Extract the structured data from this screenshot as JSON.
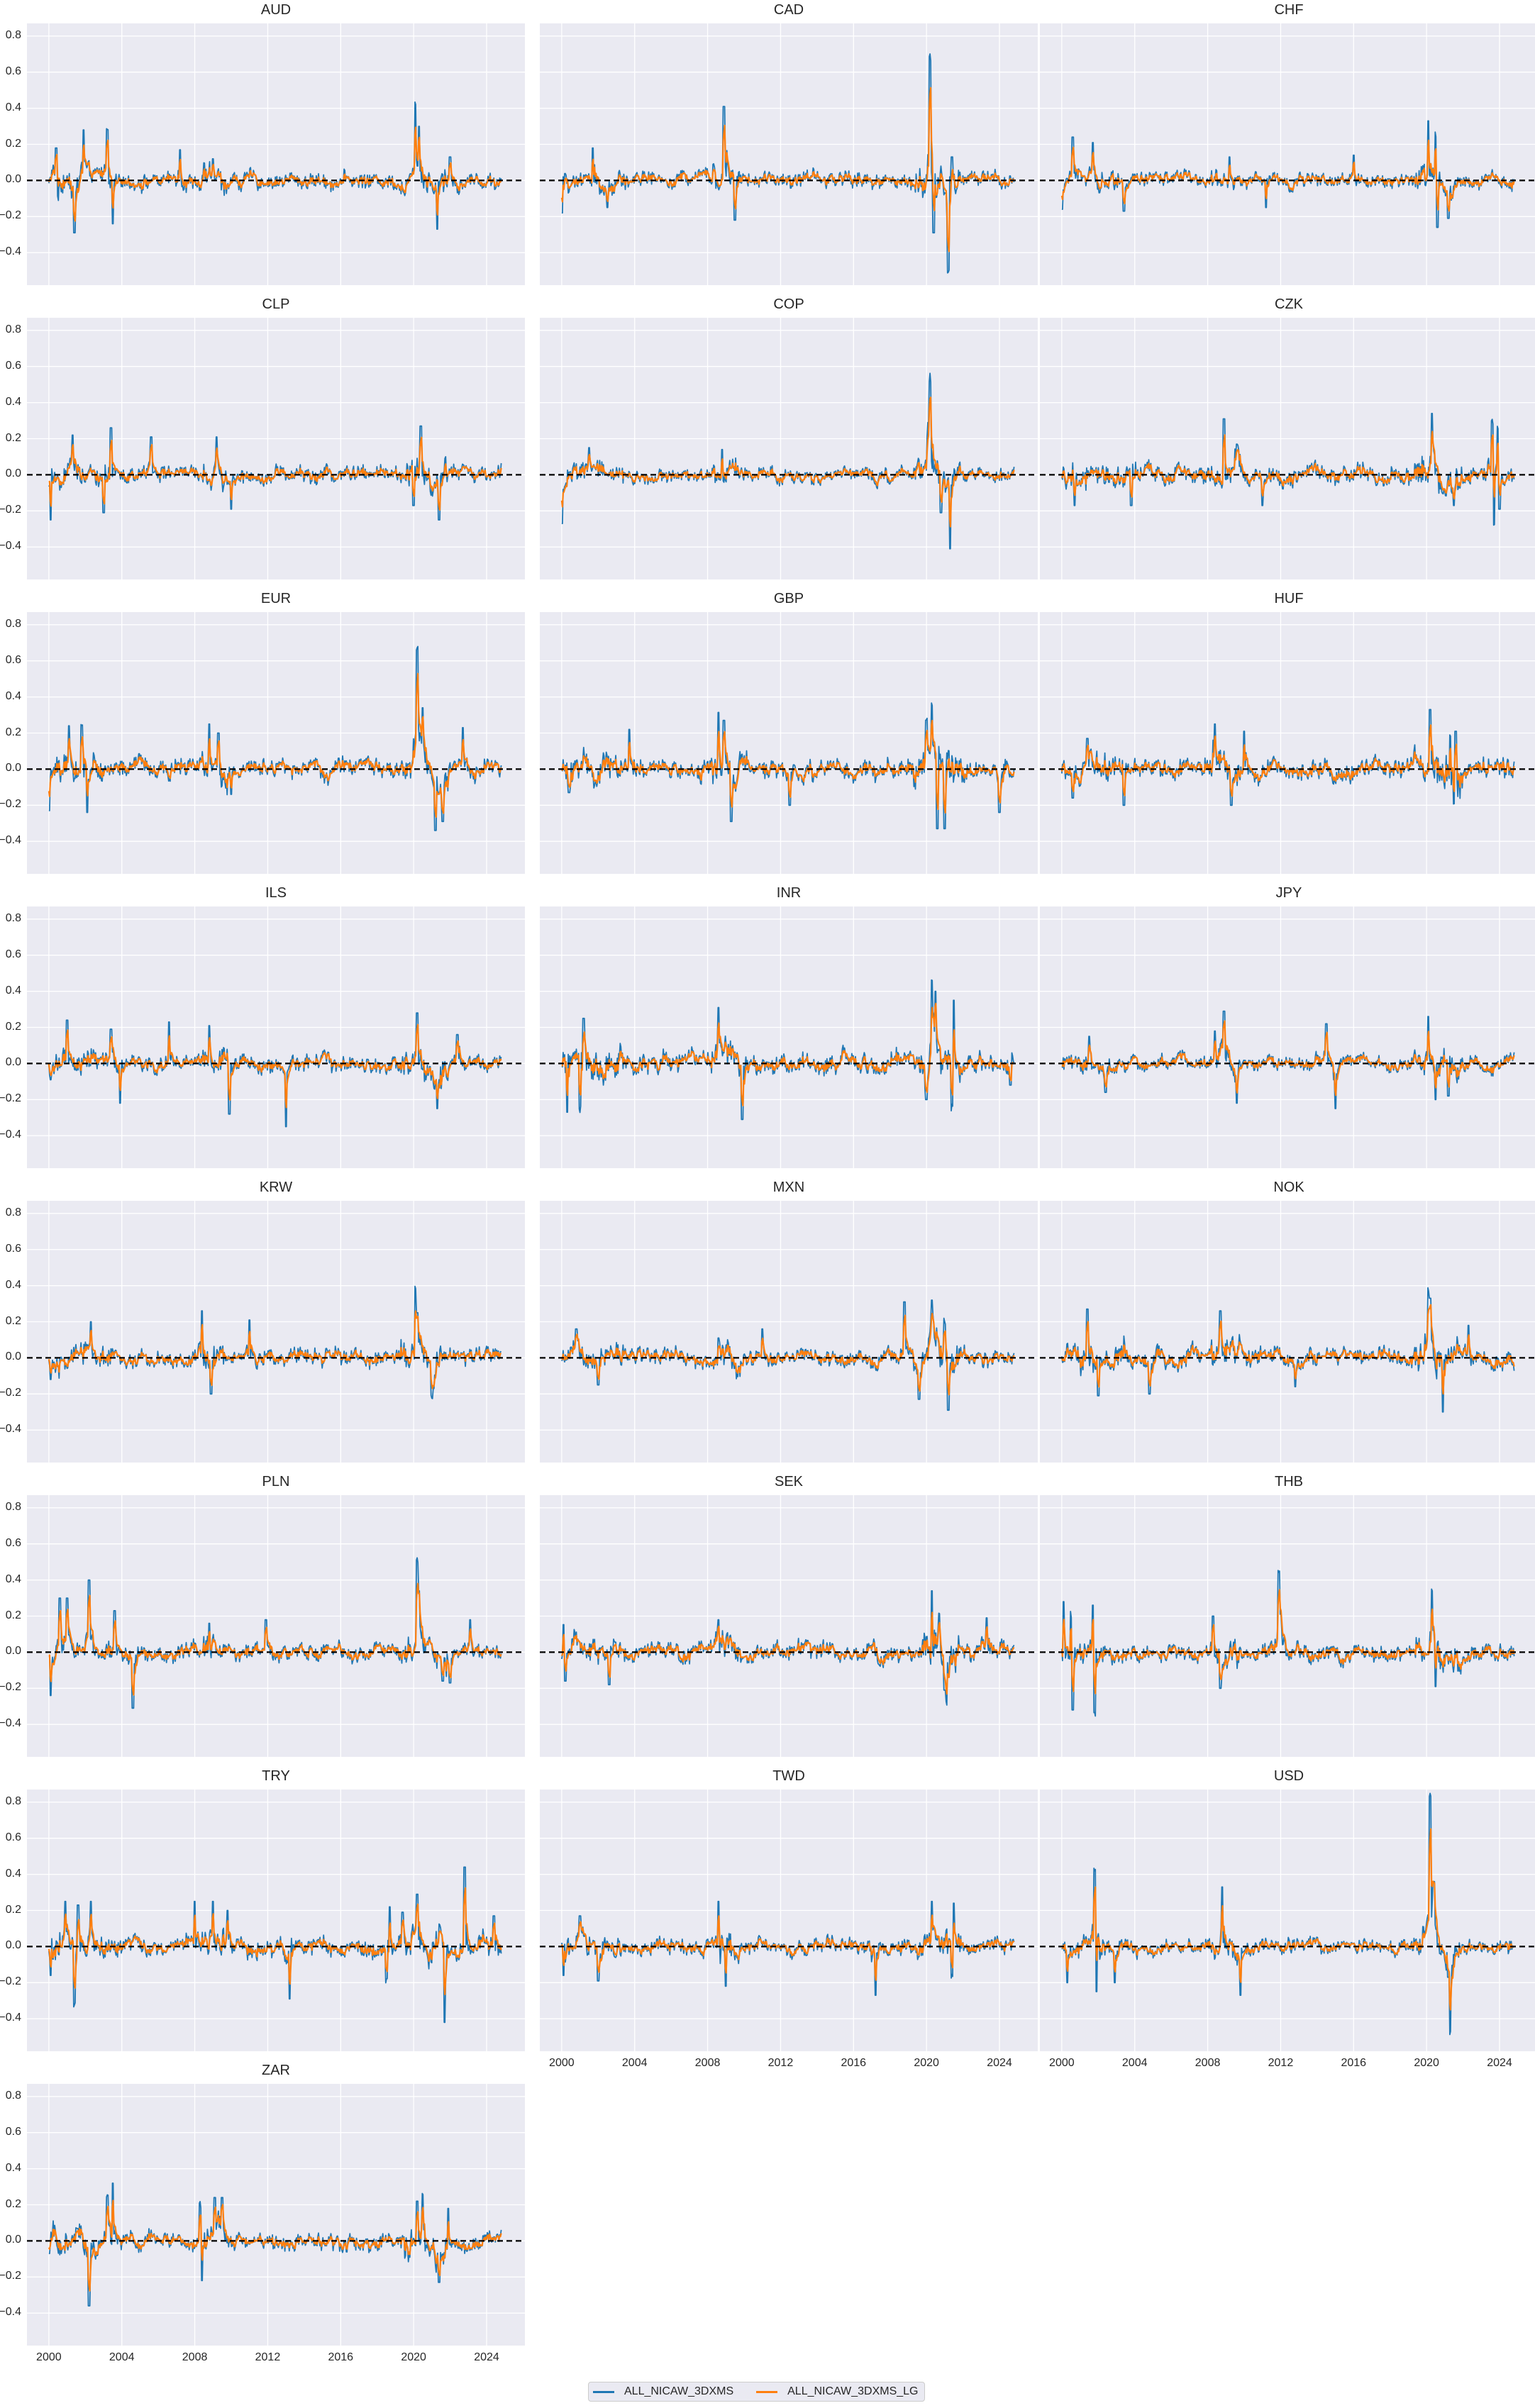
{
  "figure": {
    "legend": [
      {
        "label": "ALL_NICAW_3DXMS",
        "color": "#1f77b4"
      },
      {
        "label": "ALL_NICAW_3DXMS_LG",
        "color": "#ff7f0e"
      }
    ]
  },
  "chart_data": {
    "type": "line",
    "layout": "facet grid 3 columns x 8 rows, shared y axis, dashed zero line",
    "xlabel": "",
    "ylabel": "",
    "ylim": [
      -0.58,
      0.87
    ],
    "xlim": [
      1998.8,
      2026.1
    ],
    "yticks": [
      "0.8",
      "0.6",
      "0.4",
      "0.2",
      "0.0",
      "-0.2",
      "-0.4"
    ],
    "xticks": [
      "2000",
      "2004",
      "2008",
      "2012",
      "2016",
      "2020",
      "2024"
    ],
    "x_range_data": [
      2000.0,
      2024.8
    ],
    "grid": true,
    "zero_line": {
      "y": 0.0,
      "style": "dashed",
      "color": "#000000"
    },
    "series_names": [
      "ALL_NICAW_3DXMS",
      "ALL_NICAW_3DXMS_LG"
    ],
    "series_colors": [
      "#1f77b4",
      "#ff7f0e"
    ],
    "legend_position": "bottom center",
    "panels": [
      {
        "title": "AUD",
        "noise": 0.04,
        "events": [
          [
            2000.5,
            -0.13
          ],
          [
            2000.4,
            0.18
          ],
          [
            2001.4,
            -0.29
          ],
          [
            2001.9,
            0.28
          ],
          [
            2003.2,
            0.29
          ],
          [
            2003.5,
            -0.24
          ],
          [
            2007.2,
            0.17
          ],
          [
            2009.0,
            0.12
          ],
          [
            2020.1,
            0.41
          ],
          [
            2020.3,
            0.3
          ],
          [
            2021.3,
            -0.27
          ],
          [
            2022.0,
            0.13
          ]
        ]
      },
      {
        "title": "CAD",
        "noise": 0.04,
        "events": [
          [
            2000.0,
            -0.18
          ],
          [
            2001.7,
            0.18
          ],
          [
            2002.5,
            -0.15
          ],
          [
            2008.9,
            0.41
          ],
          [
            2009.5,
            -0.22
          ],
          [
            2020.2,
            0.71
          ],
          [
            2020.4,
            -0.29
          ],
          [
            2021.2,
            -0.52
          ],
          [
            2021.4,
            0.13
          ]
        ]
      },
      {
        "title": "CHF",
        "noise": 0.035,
        "events": [
          [
            2000.0,
            -0.16
          ],
          [
            2000.6,
            0.24
          ],
          [
            2001.7,
            0.21
          ],
          [
            2003.4,
            -0.17
          ],
          [
            2009.2,
            0.13
          ],
          [
            2011.2,
            -0.15
          ],
          [
            2016.0,
            0.14
          ],
          [
            2020.1,
            0.33
          ],
          [
            2020.5,
            0.31
          ],
          [
            2020.6,
            -0.26
          ],
          [
            2021.2,
            -0.21
          ]
        ]
      },
      {
        "title": "CLP",
        "noise": 0.04,
        "events": [
          [
            2000.1,
            -0.25
          ],
          [
            2001.3,
            0.22
          ],
          [
            2003.4,
            0.26
          ],
          [
            2003.0,
            -0.21
          ],
          [
            2005.6,
            0.21
          ],
          [
            2009.2,
            0.21
          ],
          [
            2010.0,
            -0.19
          ],
          [
            2020.0,
            0.22
          ],
          [
            2020.4,
            0.27
          ],
          [
            2020.0,
            -0.17
          ],
          [
            2021.4,
            -0.25
          ]
        ]
      },
      {
        "title": "COP",
        "noise": 0.035,
        "events": [
          [
            2000.0,
            -0.27
          ],
          [
            2001.5,
            0.15
          ],
          [
            2008.8,
            0.14
          ],
          [
            2020.2,
            0.5
          ],
          [
            2020.1,
            0.29
          ],
          [
            2021.3,
            -0.41
          ],
          [
            2020.8,
            -0.21
          ]
        ]
      },
      {
        "title": "CZK",
        "noise": 0.045,
        "events": [
          [
            2000.7,
            -0.17
          ],
          [
            2003.8,
            -0.17
          ],
          [
            2008.9,
            0.31
          ],
          [
            2009.6,
            0.17
          ],
          [
            2011.0,
            -0.17
          ],
          [
            2020.3,
            0.34
          ],
          [
            2021.5,
            -0.17
          ],
          [
            2023.6,
            0.34
          ],
          [
            2023.7,
            -0.29
          ],
          [
            2023.9,
            0.3
          ],
          [
            2024.0,
            -0.19
          ]
        ]
      },
      {
        "title": "EUR",
        "noise": 0.045,
        "events": [
          [
            2000.0,
            -0.23
          ],
          [
            2001.1,
            0.24
          ],
          [
            2001.8,
            0.25
          ],
          [
            2002.1,
            -0.24
          ],
          [
            2008.8,
            0.25
          ],
          [
            2009.3,
            0.2
          ],
          [
            2010.0,
            -0.14
          ],
          [
            2020.2,
            0.66
          ],
          [
            2020.5,
            0.34
          ],
          [
            2021.2,
            -0.34
          ],
          [
            2021.6,
            -0.29
          ],
          [
            2022.7,
            0.23
          ]
        ]
      },
      {
        "title": "GBP",
        "noise": 0.05,
        "events": [
          [
            2000.4,
            -0.13
          ],
          [
            2003.7,
            0.22
          ],
          [
            2008.6,
            0.31
          ],
          [
            2008.9,
            0.27
          ],
          [
            2009.3,
            -0.29
          ],
          [
            2012.5,
            -0.2
          ],
          [
            2020.0,
            0.27
          ],
          [
            2020.3,
            0.37
          ],
          [
            2020.6,
            -0.33
          ],
          [
            2021.0,
            -0.33
          ],
          [
            2024.0,
            -0.24
          ]
        ]
      },
      {
        "title": "HUF",
        "noise": 0.05,
        "events": [
          [
            2000.6,
            -0.16
          ],
          [
            2001.4,
            0.17
          ],
          [
            2003.4,
            -0.2
          ],
          [
            2008.4,
            0.25
          ],
          [
            2009.3,
            -0.2
          ],
          [
            2010.0,
            0.21
          ],
          [
            2020.2,
            0.33
          ],
          [
            2021.3,
            0.21
          ],
          [
            2021.5,
            -0.22
          ],
          [
            2021.6,
            0.21
          ]
        ]
      },
      {
        "title": "ILS",
        "noise": 0.04,
        "events": [
          [
            2000.1,
            -0.09
          ],
          [
            2001.0,
            0.24
          ],
          [
            2003.4,
            0.19
          ],
          [
            2003.9,
            -0.22
          ],
          [
            2006.6,
            0.23
          ],
          [
            2008.8,
            0.21
          ],
          [
            2009.9,
            -0.28
          ],
          [
            2013.0,
            -0.35
          ],
          [
            2020.2,
            0.28
          ],
          [
            2021.3,
            -0.25
          ],
          [
            2022.4,
            0.16
          ]
        ]
      },
      {
        "title": "INR",
        "noise": 0.05,
        "events": [
          [
            2000.3,
            -0.27
          ],
          [
            2001.0,
            -0.28
          ],
          [
            2001.2,
            0.25
          ],
          [
            2008.6,
            0.31
          ],
          [
            2009.9,
            -0.31
          ],
          [
            2020.3,
            0.42
          ],
          [
            2020.0,
            -0.2
          ],
          [
            2020.5,
            0.4
          ],
          [
            2021.4,
            -0.31
          ],
          [
            2021.5,
            0.35
          ],
          [
            2024.6,
            -0.12
          ]
        ]
      },
      {
        "title": "JPY",
        "noise": 0.035,
        "events": [
          [
            2001.5,
            0.15
          ],
          [
            2002.4,
            -0.16
          ],
          [
            2008.4,
            0.18
          ],
          [
            2008.9,
            0.29
          ],
          [
            2009.6,
            -0.22
          ],
          [
            2014.5,
            0.22
          ],
          [
            2015.0,
            -0.25
          ],
          [
            2020.1,
            0.26
          ],
          [
            2020.5,
            -0.2
          ],
          [
            2021.2,
            -0.18
          ]
        ]
      },
      {
        "title": "KRW",
        "noise": 0.04,
        "events": [
          [
            2000.1,
            -0.12
          ],
          [
            2002.3,
            0.2
          ],
          [
            2008.4,
            0.26
          ],
          [
            2008.9,
            -0.2
          ],
          [
            2011.0,
            0.21
          ],
          [
            2020.1,
            0.36
          ],
          [
            2020.2,
            0.25
          ],
          [
            2021.0,
            -0.2
          ],
          [
            2021.1,
            -0.17
          ]
        ]
      },
      {
        "title": "MXN",
        "noise": 0.04,
        "events": [
          [
            2000.8,
            0.16
          ],
          [
            2002.0,
            -0.15
          ],
          [
            2008.6,
            0.11
          ],
          [
            2011.0,
            0.16
          ],
          [
            2018.8,
            0.31
          ],
          [
            2019.6,
            -0.23
          ],
          [
            2020.3,
            0.4
          ],
          [
            2020.3,
            0.32
          ],
          [
            2021.0,
            0.23
          ],
          [
            2021.2,
            -0.29
          ]
        ]
      },
      {
        "title": "NOK",
        "noise": 0.045,
        "events": [
          [
            2001.4,
            0.27
          ],
          [
            2002.0,
            -0.21
          ],
          [
            2004.8,
            -0.2
          ],
          [
            2008.7,
            0.26
          ],
          [
            2012.8,
            -0.16
          ],
          [
            2020.1,
            0.32
          ],
          [
            2020.2,
            0.33
          ],
          [
            2020.9,
            -0.3
          ],
          [
            2022.3,
            0.18
          ]
        ]
      },
      {
        "title": "PLN",
        "noise": 0.04,
        "events": [
          [
            2000.1,
            -0.24
          ],
          [
            2000.6,
            0.3
          ],
          [
            2001.0,
            0.3
          ],
          [
            2002.2,
            0.4
          ],
          [
            2003.6,
            0.23
          ],
          [
            2004.6,
            -0.31
          ],
          [
            2008.8,
            0.16
          ],
          [
            2011.9,
            0.18
          ],
          [
            2020.2,
            0.45
          ],
          [
            2020.3,
            0.34
          ],
          [
            2021.6,
            -0.16
          ],
          [
            2022.0,
            -0.17
          ],
          [
            2023.1,
            0.18
          ]
        ]
      },
      {
        "title": "SEK",
        "noise": 0.045,
        "events": [
          [
            2000.1,
            0.17
          ],
          [
            2000.2,
            -0.16
          ],
          [
            2002.6,
            -0.18
          ],
          [
            2008.6,
            0.18
          ],
          [
            2020.3,
            0.34
          ],
          [
            2020.7,
            0.22
          ],
          [
            2021.1,
            -0.26
          ],
          [
            2021.0,
            -0.21
          ],
          [
            2023.3,
            0.19
          ]
        ]
      },
      {
        "title": "THB",
        "noise": 0.04,
        "events": [
          [
            2000.1,
            0.28
          ],
          [
            2000.5,
            0.27
          ],
          [
            2000.6,
            -0.32
          ],
          [
            2001.8,
            -0.38
          ],
          [
            2001.7,
            0.26
          ],
          [
            2008.3,
            0.2
          ],
          [
            2008.7,
            -0.2
          ],
          [
            2011.9,
            0.42
          ],
          [
            2012.0,
            0.21
          ],
          [
            2020.3,
            0.36
          ],
          [
            2020.5,
            -0.19
          ]
        ]
      },
      {
        "title": "TRY",
        "noise": 0.045,
        "events": [
          [
            2000.1,
            -0.16
          ],
          [
            2000.9,
            0.25
          ],
          [
            2001.4,
            -0.34
          ],
          [
            2001.6,
            0.23
          ],
          [
            2002.3,
            0.25
          ],
          [
            2008.0,
            0.25
          ],
          [
            2009.0,
            0.25
          ],
          [
            2009.8,
            0.2
          ],
          [
            2013.2,
            -0.29
          ],
          [
            2018.5,
            -0.21
          ],
          [
            2018.7,
            0.22
          ],
          [
            2019.4,
            0.19
          ],
          [
            2020.2,
            0.29
          ],
          [
            2021.7,
            -0.42
          ],
          [
            2022.8,
            0.44
          ],
          [
            2024.4,
            0.17
          ]
        ]
      },
      {
        "title": "TWD",
        "noise": 0.04,
        "events": [
          [
            2000.1,
            -0.16
          ],
          [
            2001.0,
            0.17
          ],
          [
            2002.0,
            -0.19
          ],
          [
            2008.6,
            0.25
          ],
          [
            2009.0,
            -0.22
          ],
          [
            2017.2,
            -0.27
          ],
          [
            2020.3,
            0.25
          ],
          [
            2021.4,
            -0.2
          ],
          [
            2021.5,
            0.24
          ]
        ]
      },
      {
        "title": "USD",
        "noise": 0.035,
        "events": [
          [
            2000.3,
            -0.2
          ],
          [
            2001.8,
            0.46
          ],
          [
            2001.9,
            -0.25
          ],
          [
            2002.9,
            -0.2
          ],
          [
            2008.8,
            0.33
          ],
          [
            2009.8,
            -0.27
          ],
          [
            2020.2,
            0.81
          ],
          [
            2020.4,
            0.36
          ],
          [
            2021.3,
            -0.45
          ],
          [
            2021.2,
            -0.17
          ]
        ]
      },
      {
        "title": "ZAR",
        "noise": 0.04,
        "events": [
          [
            2000.0,
            -0.07
          ],
          [
            2002.2,
            -0.36
          ],
          [
            2003.2,
            0.24
          ],
          [
            2003.5,
            0.32
          ],
          [
            2008.3,
            0.23
          ],
          [
            2008.4,
            -0.22
          ],
          [
            2009.1,
            0.24
          ],
          [
            2009.5,
            0.24
          ],
          [
            2020.5,
            0.25
          ],
          [
            2020.2,
            0.22
          ],
          [
            2021.4,
            -0.23
          ],
          [
            2021.9,
            0.18
          ]
        ]
      }
    ]
  }
}
